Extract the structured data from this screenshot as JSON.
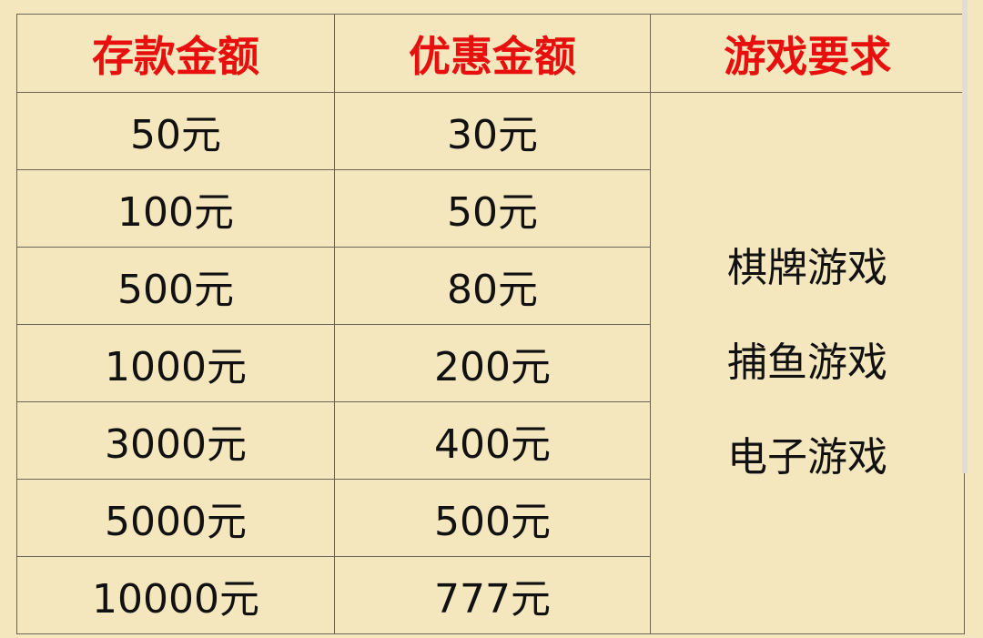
{
  "table": {
    "headers": [
      "存款金额",
      "优惠金额",
      "游戏要求"
    ],
    "rows": [
      [
        "50元",
        "30元"
      ],
      [
        "100元",
        "50元"
      ],
      [
        "500元",
        "80元"
      ],
      [
        "1000元",
        "200元"
      ],
      [
        "3000元",
        "400元"
      ],
      [
        "5000元",
        "500元"
      ],
      [
        "10000元",
        "777元"
      ]
    ],
    "game_requirements": [
      "棋牌游戏",
      "捕鱼游戏",
      "电子游戏"
    ]
  },
  "colors": {
    "header_text": "#e8100e",
    "background": "#f4e6bd",
    "border": "#6b6456"
  }
}
